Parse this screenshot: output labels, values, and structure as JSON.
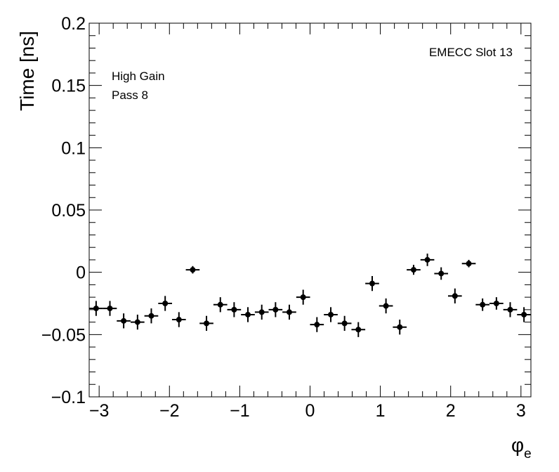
{
  "chart_data": {
    "type": "scatter",
    "title": "",
    "xlabel": "φ",
    "xlabel_subscript": "e",
    "ylabel": "Time [ns]",
    "xlim": [
      -3.1416,
      3.1416
    ],
    "ylim": [
      -0.1,
      0.2
    ],
    "x_ticks": [
      -3,
      -2,
      -1,
      0,
      1,
      2,
      3
    ],
    "x_tick_labels": [
      "−3",
      "−2",
      "−1",
      "0",
      "1",
      "2",
      "3"
    ],
    "y_ticks": [
      -0.1,
      -0.05,
      0,
      0.05,
      0.1,
      0.15,
      0.2
    ],
    "y_tick_labels": [
      "−0.1",
      "−0.05",
      "0",
      "0.05",
      "0.1",
      "0.15",
      "0.2"
    ],
    "annotations": {
      "top_right": "EMECC Slot 13",
      "gain": "High Gain",
      "pass": "Pass 8"
    },
    "x_half_width": 0.0982,
    "points": [
      {
        "x": -3.043,
        "y": -0.029,
        "yerr": 0.006
      },
      {
        "x": -2.847,
        "y": -0.029,
        "yerr": 0.006
      },
      {
        "x": -2.651,
        "y": -0.039,
        "yerr": 0.006
      },
      {
        "x": -2.454,
        "y": -0.04,
        "yerr": 0.006
      },
      {
        "x": -2.258,
        "y": -0.035,
        "yerr": 0.006
      },
      {
        "x": -2.061,
        "y": -0.025,
        "yerr": 0.006
      },
      {
        "x": -1.865,
        "y": -0.038,
        "yerr": 0.006
      },
      {
        "x": -1.669,
        "y": 0.002,
        "yerr": 0.003
      },
      {
        "x": -1.473,
        "y": -0.041,
        "yerr": 0.006
      },
      {
        "x": -1.276,
        "y": -0.026,
        "yerr": 0.006
      },
      {
        "x": -1.08,
        "y": -0.03,
        "yerr": 0.006
      },
      {
        "x": -0.884,
        "y": -0.034,
        "yerr": 0.006
      },
      {
        "x": -0.687,
        "y": -0.032,
        "yerr": 0.006
      },
      {
        "x": -0.491,
        "y": -0.03,
        "yerr": 0.006
      },
      {
        "x": -0.295,
        "y": -0.032,
        "yerr": 0.006
      },
      {
        "x": -0.098,
        "y": -0.02,
        "yerr": 0.006
      },
      {
        "x": 0.098,
        "y": -0.042,
        "yerr": 0.006
      },
      {
        "x": 0.295,
        "y": -0.034,
        "yerr": 0.006
      },
      {
        "x": 0.491,
        "y": -0.041,
        "yerr": 0.006
      },
      {
        "x": 0.687,
        "y": -0.046,
        "yerr": 0.006
      },
      {
        "x": 0.884,
        "y": -0.009,
        "yerr": 0.006
      },
      {
        "x": 1.08,
        "y": -0.027,
        "yerr": 0.006
      },
      {
        "x": 1.276,
        "y": -0.044,
        "yerr": 0.006
      },
      {
        "x": 1.473,
        "y": 0.002,
        "yerr": 0.004
      },
      {
        "x": 1.669,
        "y": 0.01,
        "yerr": 0.005
      },
      {
        "x": 1.865,
        "y": -0.001,
        "yerr": 0.005
      },
      {
        "x": 2.061,
        "y": -0.019,
        "yerr": 0.006
      },
      {
        "x": 2.258,
        "y": 0.007,
        "yerr": 0.003
      },
      {
        "x": 2.454,
        "y": -0.026,
        "yerr": 0.005
      },
      {
        "x": 2.651,
        "y": -0.025,
        "yerr": 0.005
      },
      {
        "x": 2.847,
        "y": -0.03,
        "yerr": 0.006
      },
      {
        "x": 3.043,
        "y": -0.034,
        "yerr": 0.006
      }
    ]
  }
}
